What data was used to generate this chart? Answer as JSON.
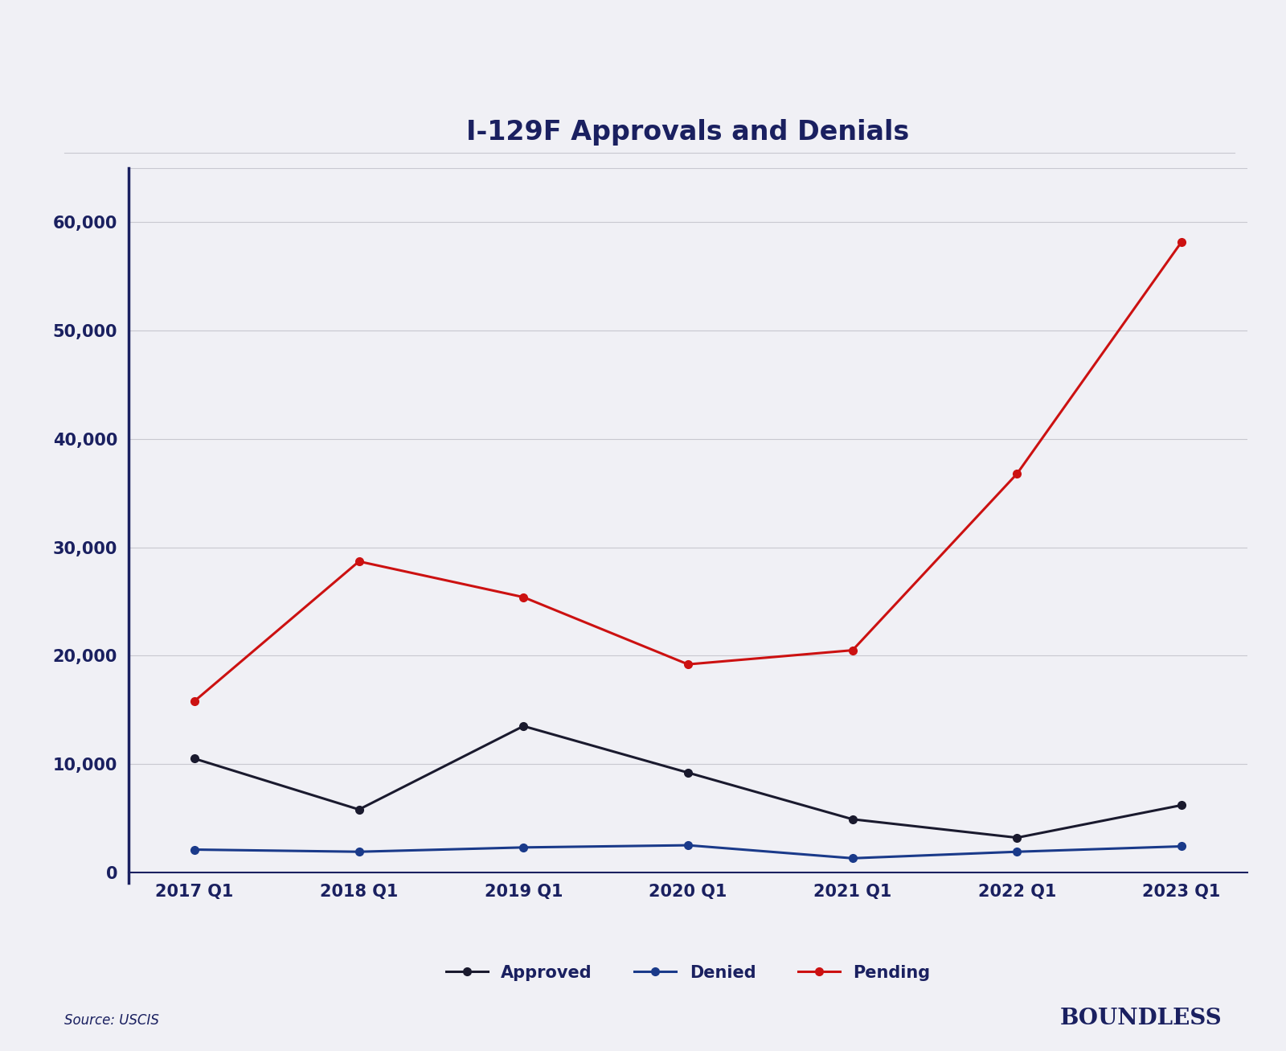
{
  "title": "I-129F Approvals and Denials",
  "categories": [
    "2017 Q1",
    "2018 Q1",
    "2019 Q1",
    "2020 Q1",
    "2021 Q1",
    "2022 Q1",
    "2023 Q1"
  ],
  "approved": [
    10500,
    5800,
    13500,
    9200,
    4900,
    3200,
    6200
  ],
  "denied": [
    2100,
    1900,
    2300,
    2500,
    1300,
    1900,
    2400
  ],
  "pending": [
    15800,
    28700,
    25400,
    19200,
    20500,
    36800,
    58200
  ],
  "approved_color": "#1a1a2e",
  "denied_color": "#1a3a8a",
  "pending_color": "#cc1111",
  "background_color": "#f0f0f5",
  "title_color": "#1a2060",
  "axis_color": "#1a2060",
  "grid_color": "#c8c8d0",
  "ylim": [
    0,
    65000
  ],
  "yticks": [
    0,
    10000,
    20000,
    30000,
    40000,
    50000,
    60000
  ],
  "source_text": "Source: USCIS",
  "brand_text": "BOUNDLESS",
  "legend_labels": [
    "Approved",
    "Denied",
    "Pending"
  ],
  "title_fontsize": 24,
  "tick_fontsize": 15,
  "legend_fontsize": 15,
  "source_fontsize": 12,
  "brand_fontsize": 20
}
